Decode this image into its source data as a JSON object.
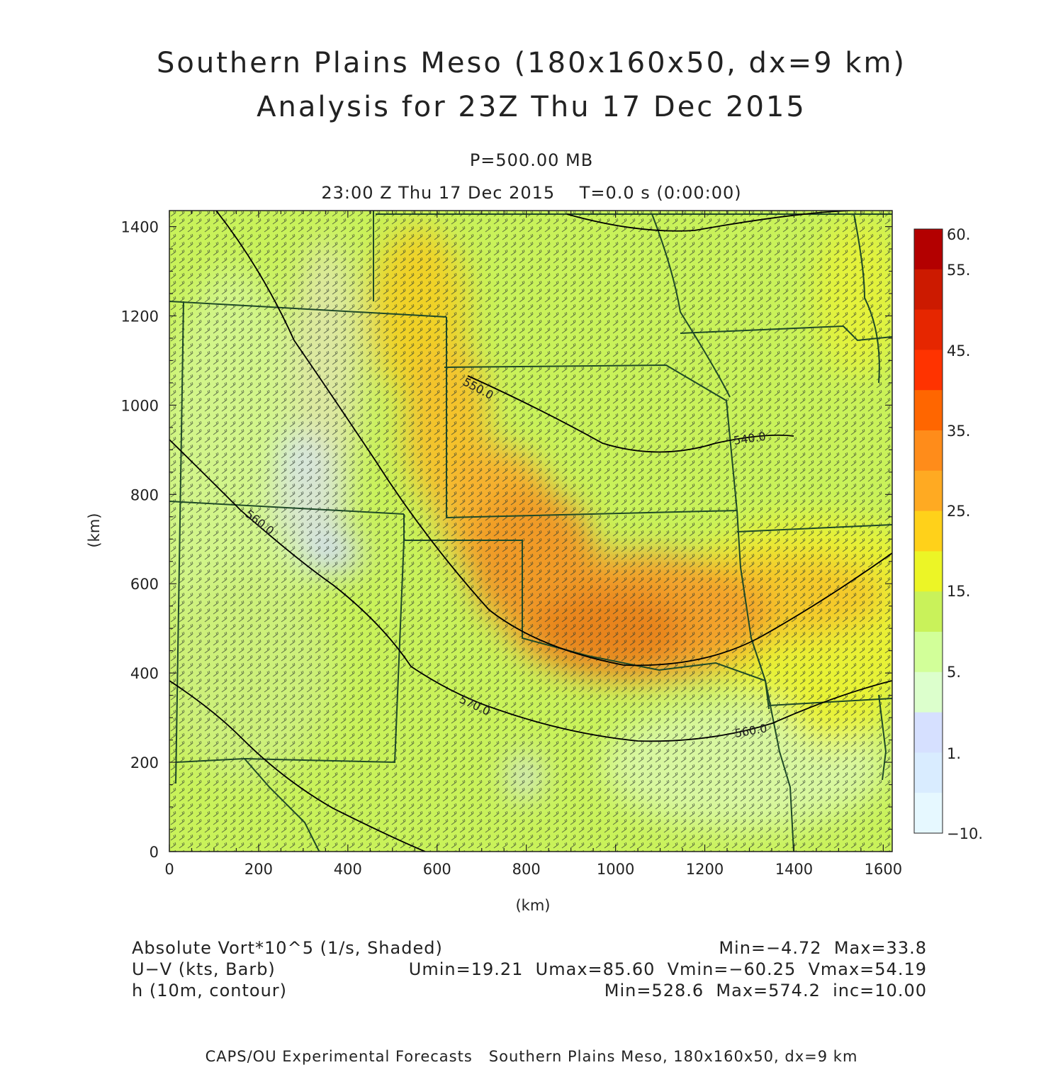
{
  "header": {
    "title_line1": "Southern Plains Meso (180x160x50, dx=9 km)",
    "title_line2": "Analysis for 23Z Thu 17 Dec 2015",
    "level": "P=500.00 MB",
    "time": "23:00 Z Thu 17 Dec 2015    T=0.0 s (0:00:00)"
  },
  "axes": {
    "x_label": "(km)",
    "y_label": "(km)",
    "x_ticks": [
      "0",
      "200",
      "400",
      "600",
      "800",
      "1000",
      "1200",
      "1400",
      "1600"
    ],
    "y_ticks": [
      "0",
      "200",
      "400",
      "600",
      "800",
      "1000",
      "1200",
      "1400"
    ],
    "x_range_km": [
      0,
      1620
    ],
    "y_range_km": [
      0,
      1440
    ]
  },
  "colorbar": {
    "labels": [
      "60.",
      "55.",
      "45.",
      "35.",
      "25.",
      "15.",
      "5.",
      "1.",
      "−10."
    ],
    "colors": [
      "#b30000",
      "#cc1a00",
      "#e62600",
      "#ff3300",
      "#ff6600",
      "#ff8c1a",
      "#ffaa22",
      "#ffd11a",
      "#ecf526",
      "#c9f25a",
      "#d2ff99",
      "#dcffcc",
      "#d6e0ff",
      "#d9ecff",
      "#e6f8ff"
    ]
  },
  "contours": [
    {
      "label": "550.0"
    },
    {
      "label": "540.0"
    },
    {
      "label": "560.0"
    },
    {
      "label": "570.0"
    },
    {
      "label": "560.0"
    }
  ],
  "legend": {
    "field1_name": "Absolute Vort*10^5 (1/s, Shaded)",
    "field1_stats": "Min=−4.72  Max=33.8",
    "field2_name": "U−V (kts, Barb)",
    "field2_stats": "Umin=19.21  Umax=85.60  Vmin=−60.25  Vmax=54.19",
    "field3_name": "h (10m, contour)",
    "field3_stats": "Min=528.6  Max=574.2  inc=10.00"
  },
  "footer": "CAPS/OU Experimental Forecasts   Southern Plains Meso, 180x160x50, dx=9 km",
  "colors": {
    "field_base": "#c9f25a",
    "state_lines": "#1f4a28",
    "contours": "#000000"
  }
}
